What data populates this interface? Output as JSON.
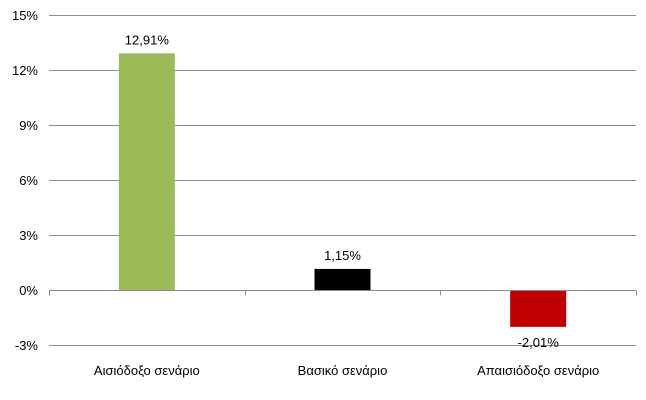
{
  "chart_data": {
    "type": "bar",
    "categories": [
      "Αισιόδοξο σενάριο",
      "Βασικό σενάριο",
      "Απαισιόδοξο σενάριο"
    ],
    "values": [
      12.91,
      1.15,
      -2.01
    ],
    "data_labels": [
      "12,91%",
      "1,15%",
      "-2,01%"
    ],
    "colors": [
      "#9bbb59",
      "#000000",
      "#c00000"
    ],
    "ylim": [
      -3,
      15
    ],
    "yticks": [
      -3,
      0,
      3,
      6,
      9,
      12,
      15
    ],
    "ytick_labels": [
      "-3%",
      "0%",
      "3%",
      "6%",
      "9%",
      "12%",
      "15%"
    ],
    "grid": true,
    "legend": "none"
  }
}
